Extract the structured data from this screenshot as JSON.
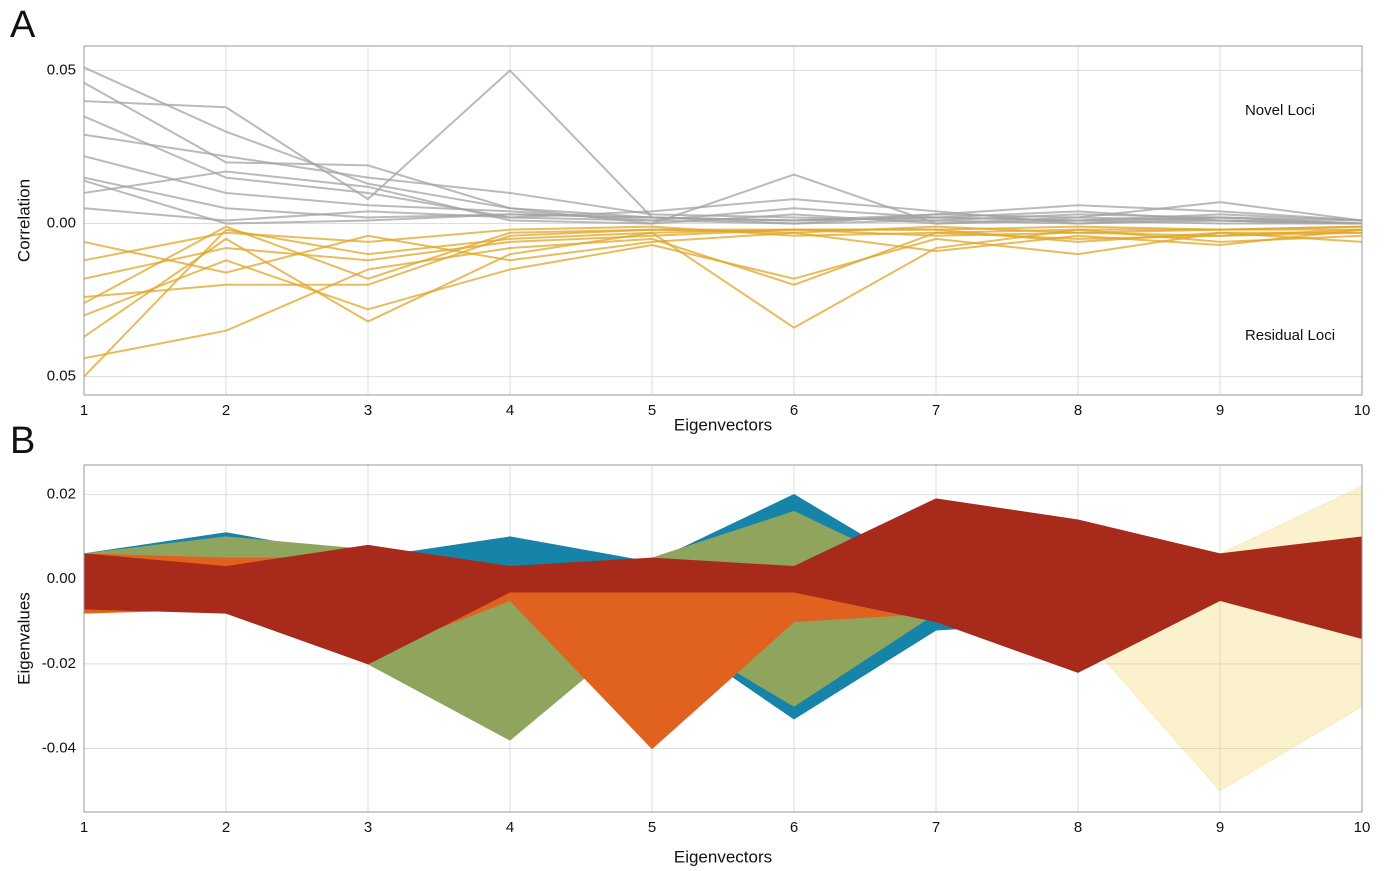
{
  "chart_data": [
    {
      "type": "multiline",
      "panel_label": "A",
      "ylabel": "Correlation",
      "xlabel": "Eigenvectors",
      "x": [
        1,
        2,
        3,
        4,
        5,
        6,
        7,
        8,
        9,
        10
      ],
      "xlim": [
        1,
        10
      ],
      "xticks": [
        1,
        2,
        3,
        4,
        5,
        6,
        7,
        8,
        9,
        10
      ],
      "ylim": [
        -0.056,
        0.058
      ],
      "yticks": [
        {
          "value": -0.05,
          "label": "0.05"
        },
        {
          "value": 0,
          "label": "0.00"
        },
        {
          "value": 0.05,
          "label": "0.05"
        }
      ],
      "grid": true,
      "series": [
        {
          "name": "Novel Loci",
          "color": "#a3a3a3",
          "lines": [
            [
              0.051,
              0.03,
              0.013,
              0.005,
              0.002,
              0.0,
              0.003,
              0.006,
              0.004,
              0.001
            ],
            [
              0.04,
              0.038,
              0.008,
              0.05,
              0.002,
              0.001,
              0.002,
              0.001,
              0.002,
              0.0
            ],
            [
              0.046,
              0.02,
              0.019,
              0.005,
              0.0,
              0.016,
              0.0,
              0.002,
              0.007,
              0.001
            ],
            [
              0.035,
              0.015,
              0.01,
              0.002,
              0.004,
              0.008,
              0.004,
              0.0,
              0.001,
              0.0
            ],
            [
              0.029,
              0.022,
              0.015,
              0.01,
              0.003,
              0.002,
              0.001,
              0.003,
              0.002,
              0.001
            ],
            [
              0.022,
              0.01,
              0.006,
              0.004,
              0.001,
              0.005,
              0.002,
              0.001,
              0.0,
              0.0
            ],
            [
              0.015,
              0.005,
              0.002,
              0.003,
              0.002,
              0.001,
              0.003,
              0.002,
              0.001,
              0.0
            ],
            [
              0.01,
              0.017,
              0.012,
              0.001,
              0.0,
              0.003,
              0.0,
              0.001,
              0.003,
              0.001
            ],
            [
              0.005,
              0.001,
              0.004,
              0.002,
              0.001,
              0.0,
              0.001,
              0.0,
              0.002,
              0.0
            ],
            [
              0.014,
              0.0,
              0.001,
              0.003,
              0.002,
              0.001,
              0.002,
              0.004,
              0.001,
              0.0
            ]
          ]
        },
        {
          "name": "Residual Loci",
          "color": "#e0a526",
          "lines": [
            [
              -0.05,
              -0.002,
              -0.01,
              -0.005,
              -0.003,
              -0.002,
              -0.004,
              -0.003,
              -0.002,
              -0.002
            ],
            [
              -0.044,
              -0.035,
              -0.015,
              -0.008,
              -0.005,
              -0.02,
              -0.003,
              -0.005,
              -0.004,
              -0.003
            ],
            [
              -0.037,
              -0.005,
              -0.032,
              -0.01,
              -0.003,
              -0.034,
              -0.008,
              -0.002,
              -0.006,
              -0.004
            ],
            [
              -0.03,
              -0.012,
              -0.028,
              -0.015,
              -0.007,
              -0.018,
              -0.005,
              -0.01,
              -0.003,
              -0.006
            ],
            [
              -0.024,
              -0.02,
              -0.02,
              -0.004,
              -0.002,
              -0.003,
              -0.009,
              -0.004,
              -0.007,
              -0.002
            ],
            [
              -0.018,
              -0.008,
              -0.012,
              -0.006,
              -0.004,
              -0.002,
              -0.002,
              -0.006,
              -0.003,
              -0.003
            ],
            [
              -0.012,
              -0.003,
              -0.006,
              -0.002,
              -0.001,
              -0.004,
              -0.003,
              -0.002,
              -0.002,
              -0.001
            ],
            [
              -0.006,
              -0.016,
              -0.004,
              -0.012,
              -0.006,
              -0.003,
              -0.001,
              -0.003,
              -0.004,
              -0.002
            ],
            [
              -0.026,
              -0.001,
              -0.018,
              -0.003,
              -0.002,
              -0.002,
              -0.002,
              -0.001,
              -0.002,
              -0.001
            ]
          ]
        }
      ]
    },
    {
      "type": "range",
      "panel_label": "B",
      "ylabel": "Eigenvalues",
      "xlabel": "Eigenvectors",
      "x": [
        1,
        2,
        3,
        4,
        5,
        6,
        7,
        8,
        9,
        10
      ],
      "xlim": [
        1,
        10
      ],
      "xticks": [
        1,
        2,
        3,
        4,
        5,
        6,
        7,
        8,
        9,
        10
      ],
      "ylim": [
        -0.055,
        0.027
      ],
      "yticks": [
        {
          "value": -0.04,
          "label": "-0.04"
        },
        {
          "value": -0.02,
          "label": "-0.02"
        },
        {
          "value": 0,
          "label": "0.00"
        },
        {
          "value": 0.02,
          "label": "0.02"
        }
      ],
      "grid": true,
      "series": [
        {
          "color": "#f2cf5b",
          "opacity": 0.3,
          "upper": [
            0.006,
            0.005,
            0.005,
            0.003,
            0.003,
            0.003,
            0.005,
            0.008,
            0.006,
            0.022
          ],
          "lower": [
            -0.008,
            -0.007,
            -0.018,
            -0.005,
            -0.005,
            -0.005,
            -0.008,
            -0.012,
            -0.05,
            -0.03
          ]
        },
        {
          "color": "#1683a8",
          "opacity": 1,
          "upper": [
            0.006,
            0.011,
            0.005,
            0.01,
            0.004,
            0.02,
            0.0,
            -0.008,
            0.005,
            0.008
          ],
          "lower": [
            -0.007,
            -0.006,
            -0.018,
            -0.005,
            -0.01,
            -0.033,
            -0.012,
            -0.01,
            -0.005,
            -0.01
          ]
        },
        {
          "color": "#8fa55e",
          "opacity": 1,
          "upper": [
            0.006,
            0.01,
            0.007,
            0.002,
            0.005,
            0.016,
            0.0,
            -0.008,
            0.005,
            0.008
          ],
          "lower": [
            -0.007,
            -0.006,
            -0.02,
            -0.038,
            -0.01,
            -0.03,
            -0.008,
            -0.01,
            -0.005,
            -0.01
          ]
        },
        {
          "color": "#e0621e",
          "opacity": 1,
          "upper": [
            0.006,
            0.005,
            0.005,
            0.003,
            0.0,
            0.003,
            -0.005,
            -0.008,
            0.005,
            0.008
          ],
          "lower": [
            -0.008,
            -0.007,
            -0.018,
            -0.005,
            -0.04,
            -0.01,
            -0.008,
            -0.01,
            -0.005,
            -0.01
          ]
        },
        {
          "color": "#a82a1a",
          "opacity": 1,
          "upper": [
            0.006,
            0.003,
            0.008,
            0.003,
            0.005,
            0.003,
            0.019,
            0.014,
            0.006,
            0.01
          ],
          "lower": [
            -0.007,
            -0.008,
            -0.02,
            -0.003,
            -0.003,
            -0.003,
            -0.01,
            -0.022,
            -0.005,
            -0.014
          ]
        }
      ]
    }
  ]
}
